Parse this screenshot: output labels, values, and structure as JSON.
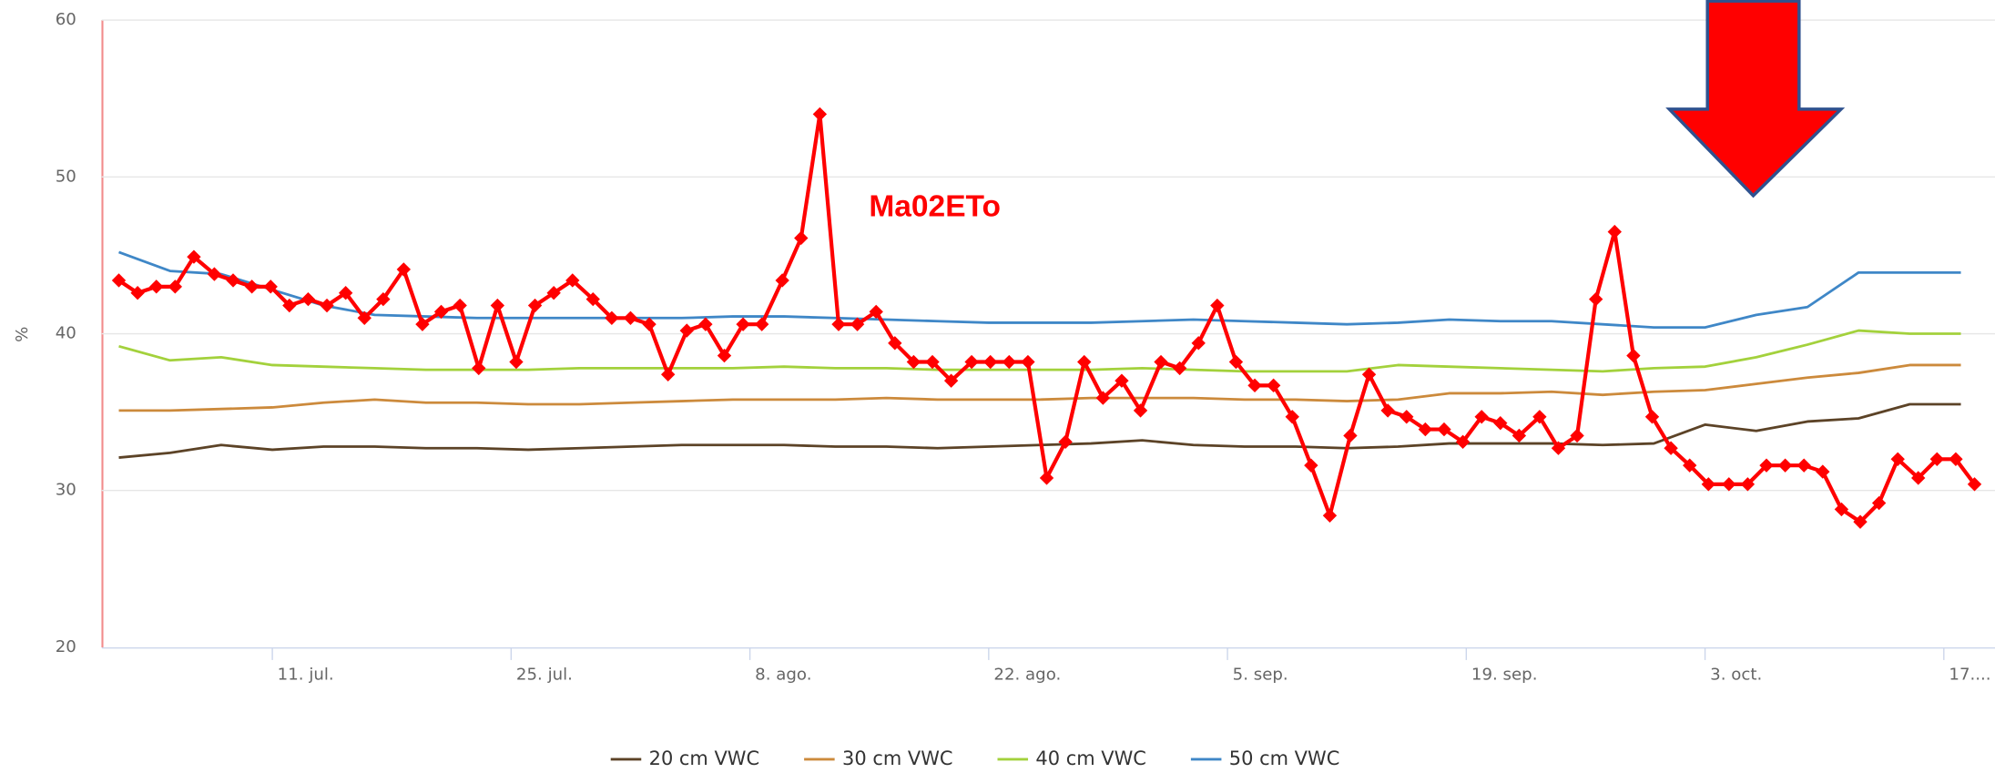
{
  "chart_data": {
    "type": "line",
    "ylabel": "%",
    "ylim": [
      20,
      60
    ],
    "yticks": [
      20,
      30,
      40,
      50,
      60
    ],
    "grid": true,
    "xlim": [
      182,
      293
    ],
    "xticks": [
      {
        "value": 192,
        "label": "11. jul."
      },
      {
        "value": 206,
        "label": "25. jul."
      },
      {
        "value": 220,
        "label": "8. ago."
      },
      {
        "value": 234,
        "label": "22. ago."
      },
      {
        "value": 248,
        "label": "5. sep."
      },
      {
        "value": 262,
        "label": "19. sep."
      },
      {
        "value": 276,
        "label": "3. oct."
      },
      {
        "value": 290,
        "label": "17...."
      }
    ],
    "x": [
      183,
      186,
      189,
      192,
      195,
      198,
      201,
      204,
      207,
      210,
      213,
      216,
      219,
      222,
      225,
      228,
      231,
      234,
      237,
      240,
      243,
      246,
      249,
      252,
      255,
      258,
      261,
      264,
      267,
      270,
      273,
      276,
      279,
      282,
      285,
      288,
      291
    ],
    "series": [
      {
        "name": "20 cm VWC",
        "color": "#5c4327",
        "values": [
          32.1,
          32.4,
          32.9,
          32.6,
          32.8,
          32.8,
          32.7,
          32.7,
          32.6,
          32.7,
          32.8,
          32.9,
          32.9,
          32.9,
          32.8,
          32.8,
          32.7,
          32.8,
          32.9,
          33.0,
          33.2,
          32.9,
          32.8,
          32.8,
          32.7,
          32.8,
          33.0,
          33.0,
          33.0,
          32.9,
          33.0,
          34.2,
          33.8,
          34.4,
          34.6,
          35.5,
          35.5
        ]
      },
      {
        "name": "30 cm VWC",
        "color": "#cc8a3c",
        "values": [
          35.1,
          35.1,
          35.2,
          35.3,
          35.6,
          35.8,
          35.6,
          35.6,
          35.5,
          35.5,
          35.6,
          35.7,
          35.8,
          35.8,
          35.8,
          35.9,
          35.8,
          35.8,
          35.8,
          35.9,
          35.9,
          35.9,
          35.8,
          35.8,
          35.7,
          35.8,
          36.2,
          36.2,
          36.3,
          36.1,
          36.3,
          36.4,
          36.8,
          37.2,
          37.5,
          38.0,
          38.0
        ]
      },
      {
        "name": "40 cm VWC",
        "color": "#a3d13c",
        "values": [
          39.2,
          38.3,
          38.5,
          38.0,
          37.9,
          37.8,
          37.7,
          37.7,
          37.7,
          37.8,
          37.8,
          37.8,
          37.8,
          37.9,
          37.8,
          37.8,
          37.7,
          37.7,
          37.7,
          37.7,
          37.8,
          37.7,
          37.6,
          37.6,
          37.6,
          38.0,
          37.9,
          37.8,
          37.7,
          37.6,
          37.8,
          37.9,
          38.5,
          39.3,
          40.2,
          40.0,
          40.0
        ]
      },
      {
        "name": "50 cm VWC",
        "color": "#3f87c7",
        "values": [
          45.2,
          44.0,
          43.8,
          42.8,
          41.8,
          41.2,
          41.1,
          41.0,
          41.0,
          41.0,
          41.0,
          41.0,
          41.1,
          41.1,
          41.0,
          40.9,
          40.8,
          40.7,
          40.7,
          40.7,
          40.8,
          40.9,
          40.8,
          40.7,
          40.6,
          40.7,
          40.9,
          40.8,
          40.8,
          40.6,
          40.4,
          40.4,
          41.2,
          41.7,
          43.9,
          43.9,
          43.9
        ]
      },
      {
        "name": "Ma02ETo",
        "color": "#ff0000",
        "in_legend": false,
        "markers": "diamond",
        "x": [
          183.0,
          184.1,
          185.2,
          186.3,
          187.4,
          188.6,
          189.7,
          190.8,
          191.9,
          193.0,
          194.1,
          195.2,
          196.3,
          197.4,
          198.5,
          199.7,
          200.8,
          201.9,
          203.0,
          204.1,
          205.2,
          206.3,
          207.4,
          208.5,
          209.6,
          210.8,
          211.9,
          213.0,
          214.1,
          215.2,
          216.3,
          217.4,
          218.5,
          219.6,
          220.7,
          221.9,
          223.0,
          224.1,
          225.2,
          226.3,
          227.4,
          228.5,
          229.6,
          230.7,
          231.8,
          233.0,
          234.1,
          235.2,
          236.3,
          237.4,
          238.5,
          239.6,
          240.7,
          241.8,
          242.9,
          244.1,
          245.2,
          246.3,
          247.4,
          248.5,
          249.6,
          250.7,
          251.8,
          252.9,
          254.0,
          255.2,
          256.3,
          257.4,
          258.5,
          259.6,
          260.7,
          261.8,
          262.9,
          264.0,
          265.1,
          266.3,
          267.4,
          268.5,
          269.6,
          270.7,
          271.8,
          272.9,
          274.0,
          275.1,
          276.2,
          277.4,
          278.5,
          279.6,
          280.7,
          281.8,
          282.9,
          284.0,
          285.1,
          286.2,
          287.3,
          288.5,
          289.6,
          290.7,
          291.8
        ],
        "values": [
          43.4,
          42.6,
          43.0,
          43.0,
          44.9,
          43.8,
          43.4,
          43.0,
          43.0,
          41.8,
          42.2,
          41.8,
          42.6,
          41.0,
          42.2,
          44.1,
          40.6,
          41.4,
          41.8,
          37.8,
          41.8,
          38.2,
          41.8,
          42.6,
          43.4,
          42.2,
          41.0,
          41.0,
          40.6,
          37.4,
          40.2,
          40.6,
          38.6,
          40.6,
          40.6,
          43.4,
          46.1,
          54.0,
          40.6,
          40.6,
          41.4,
          39.4,
          38.2,
          38.2,
          37.0,
          38.2,
          38.2,
          38.2,
          38.2,
          30.8,
          33.1,
          38.2,
          35.9,
          37.0,
          35.1,
          38.2,
          37.8,
          39.4,
          41.8,
          38.2,
          36.7,
          36.7,
          34.7,
          31.6,
          28.4,
          33.5,
          37.4,
          35.1,
          34.7,
          33.9,
          33.9,
          33.1,
          34.7,
          34.3,
          33.5,
          34.7,
          32.7,
          33.5,
          42.2,
          46.5,
          38.6,
          34.7,
          32.7,
          31.6,
          30.4,
          30.4,
          30.4,
          31.6,
          31.6,
          31.6,
          31.2,
          28.8,
          28.0,
          29.2,
          32.0,
          30.8,
          32.0,
          32.0,
          30.4
        ]
      }
    ]
  }
}
